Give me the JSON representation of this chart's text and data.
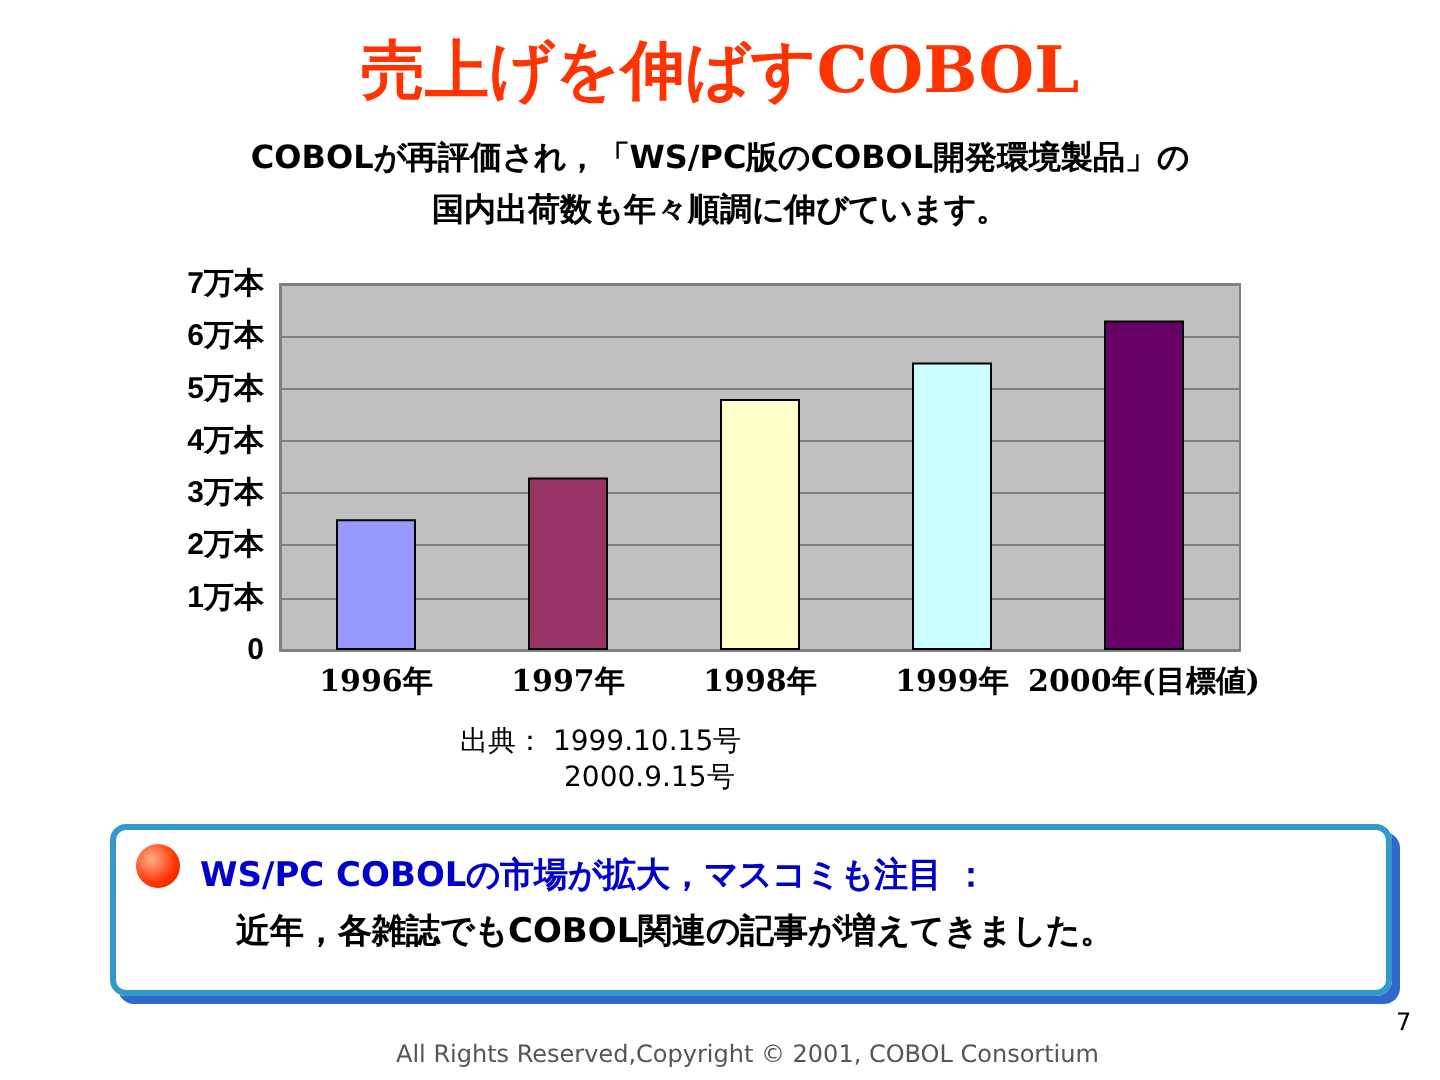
{
  "chart_data": {
    "type": "bar",
    "title": "売上げを伸ばすCOBOL",
    "subtitle": "COBOLが再評価され，「WS/PC版のCOBOL開発環境製品」の国内出荷数も年々順調に伸びています。",
    "categories": [
      "1996年",
      "1997年",
      "1998年",
      "1999年",
      "2000年(目標値)"
    ],
    "values": [
      2.5,
      3.3,
      4.8,
      5.5,
      6.3
    ],
    "colors": [
      "#9999ff",
      "#993366",
      "#ffffcc",
      "#ccffff",
      "#660066"
    ],
    "ylim": [
      0,
      7
    ],
    "yticks": [
      0,
      {
        "value": 1,
        "label": "1万本"
      },
      {
        "value": 2,
        "label": "2万本"
      },
      {
        "value": 3,
        "label": "3万本"
      },
      {
        "value": 4,
        "label": "4万本"
      },
      {
        "value": 5,
        "label": "5万本"
      },
      {
        "value": 6,
        "label": "6万本"
      },
      {
        "value": 7,
        "label": "7万本"
      }
    ],
    "grid": "y",
    "annotations": [
      "出典： 1999.10.15号",
      "2000.9.15号",
      "WS/PC COBOLの市場が拡大，マスコミも注目 ：",
      "近年，各雑誌でもCOBOL関連の記事が増えてきました。",
      "7",
      "All Rights Reserved,Copyright © 2001, COBOL Consortium"
    ]
  }
}
